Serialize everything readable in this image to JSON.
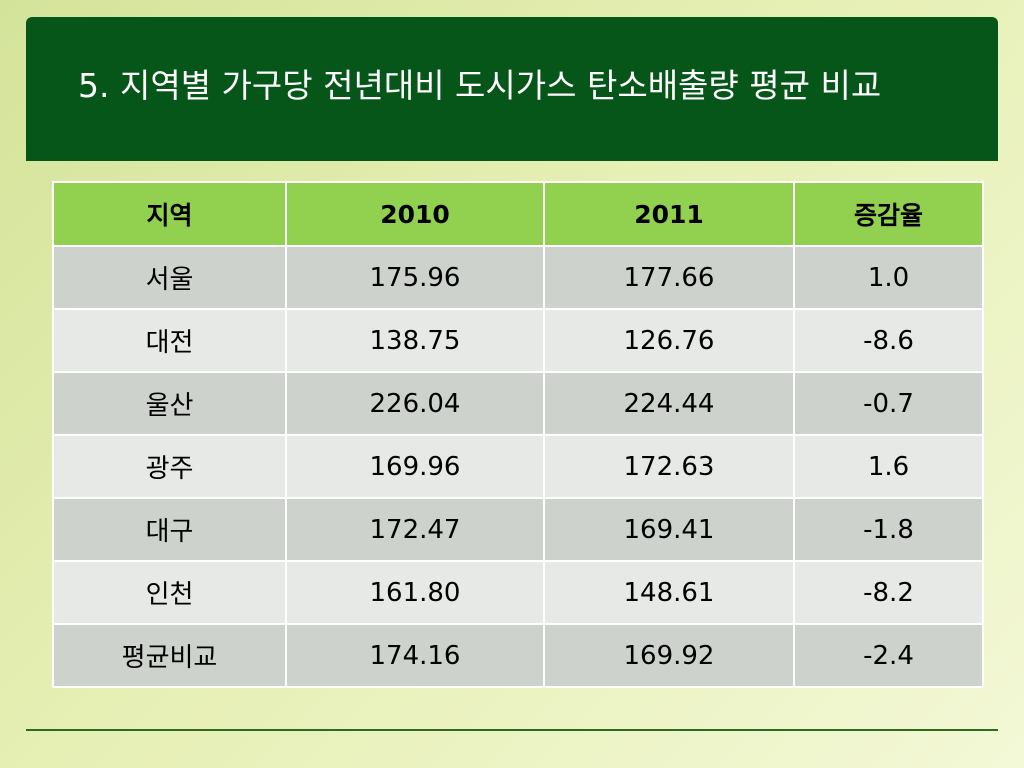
{
  "slide": {
    "title": "5. 지역별 가구당 전년대비 도시가스 탄소배출량 평균 비교"
  },
  "table": {
    "headers": [
      "지역",
      "2010",
      "2011",
      "증감율"
    ],
    "rows": [
      [
        "서울",
        "175.96",
        "177.66",
        "1.0"
      ],
      [
        "대전",
        "138.75",
        "126.76",
        "-8.6"
      ],
      [
        "울산",
        "226.04",
        "224.44",
        "-0.7"
      ],
      [
        "광주",
        "169.96",
        "172.63",
        "1.6"
      ],
      [
        "대구",
        "172.47",
        "169.41",
        "-1.8"
      ],
      [
        "인천",
        "161.80",
        "148.61",
        "-8.2"
      ],
      [
        "평균비교",
        "174.16",
        "169.92",
        "-2.4"
      ]
    ]
  },
  "colors": {
    "title_bar": "#06561a",
    "header_row": "#92d050",
    "row_dark": "#cdd2cd",
    "row_light": "#e6e9e6"
  }
}
